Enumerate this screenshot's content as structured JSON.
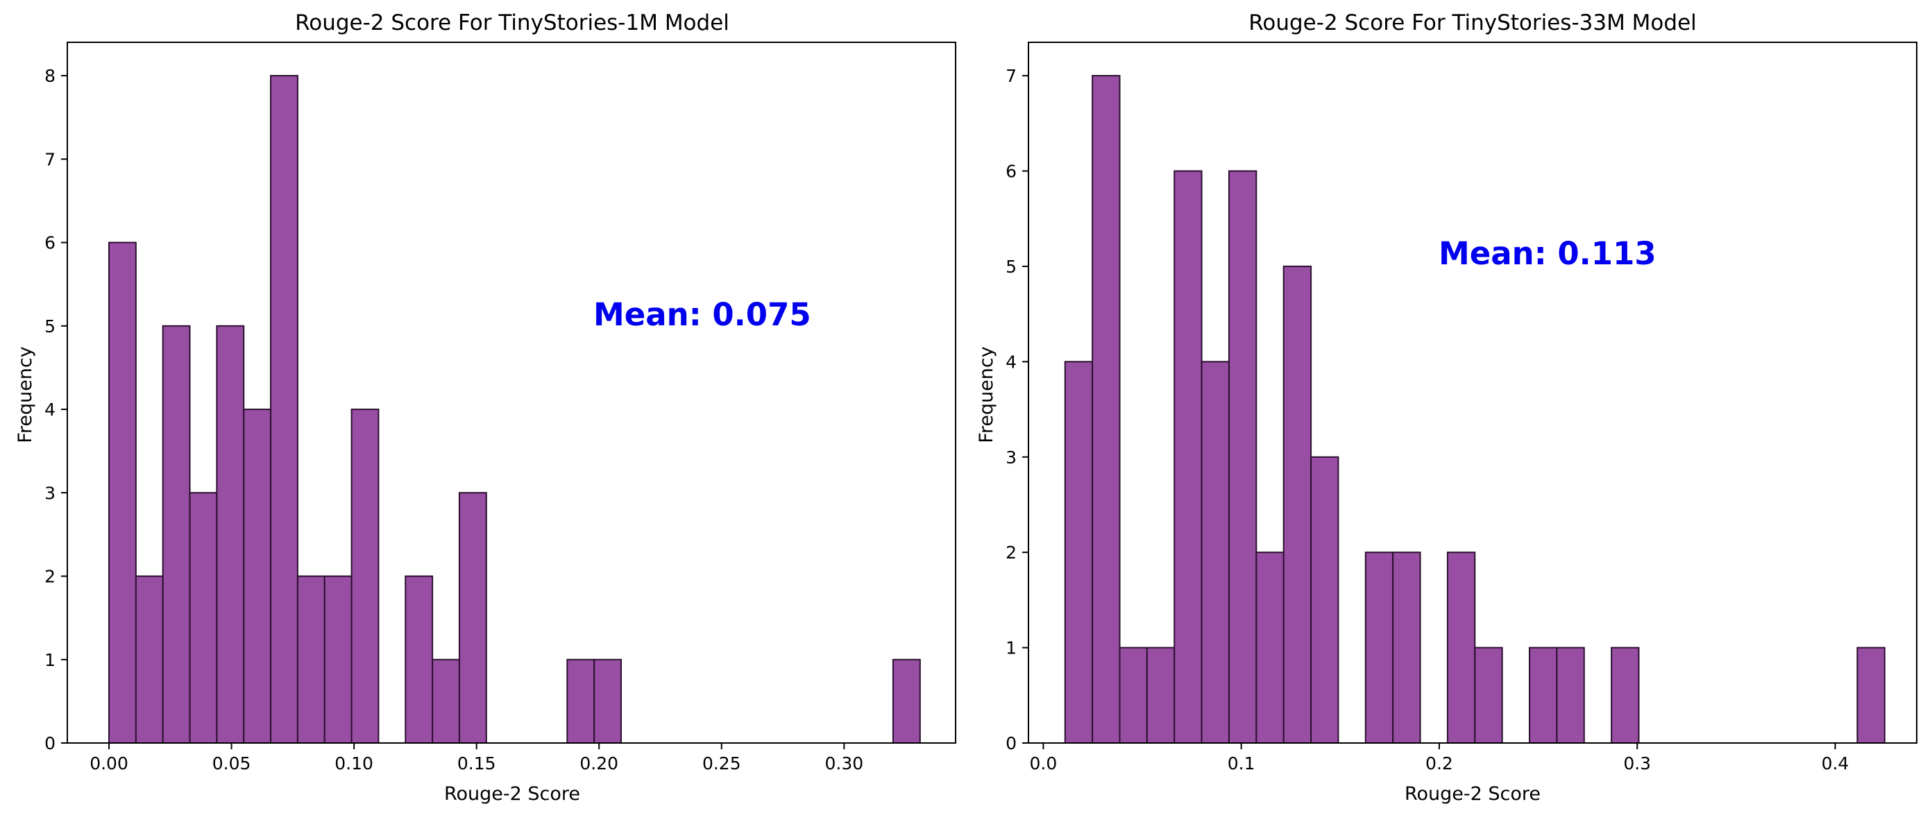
{
  "colors": {
    "bar_fill": "#984ea3",
    "bar_edge": "#2a0f2e",
    "mean_text": "#0000ee"
  },
  "chart_data": [
    {
      "type": "bar",
      "title": "Rouge-2 Score For TinyStories-1M Model",
      "xlabel": "Rouge-2 Score",
      "ylabel": "Frequency",
      "annotation": "Mean: 0.075",
      "xlim": [
        -0.017,
        0.3455
      ],
      "ylim": [
        0,
        8.4
      ],
      "xticks": [
        "0.00",
        "0.05",
        "0.10",
        "0.15",
        "0.20",
        "0.25",
        "0.30"
      ],
      "xtick_values": [
        0.0,
        0.05,
        0.1,
        0.15,
        0.2,
        0.25,
        0.3
      ],
      "yticks": [
        "0",
        "1",
        "2",
        "3",
        "4",
        "5",
        "6",
        "7",
        "8"
      ],
      "ytick_values": [
        0,
        1,
        2,
        3,
        4,
        5,
        6,
        7,
        8
      ],
      "bin_width": 0.011,
      "bins": [
        {
          "x": 0.0,
          "count": 6
        },
        {
          "x": 0.011,
          "count": 2
        },
        {
          "x": 0.022,
          "count": 5
        },
        {
          "x": 0.033,
          "count": 3
        },
        {
          "x": 0.044,
          "count": 5
        },
        {
          "x": 0.055,
          "count": 4
        },
        {
          "x": 0.066,
          "count": 8
        },
        {
          "x": 0.077,
          "count": 2
        },
        {
          "x": 0.088,
          "count": 2
        },
        {
          "x": 0.099,
          "count": 4
        },
        {
          "x": 0.121,
          "count": 2
        },
        {
          "x": 0.132,
          "count": 1
        },
        {
          "x": 0.143,
          "count": 3
        },
        {
          "x": 0.187,
          "count": 1
        },
        {
          "x": 0.198,
          "count": 1
        },
        {
          "x": 0.32,
          "count": 1
        }
      ]
    },
    {
      "type": "bar",
      "title": "Rouge-2 Score For TinyStories-33M Model",
      "xlabel": "Rouge-2 Score",
      "ylabel": "Frequency",
      "annotation": "Mean: 0.113",
      "xlim": [
        -0.0075,
        0.4412
      ],
      "ylim": [
        0,
        7.35
      ],
      "xticks": [
        "0.0",
        "0.1",
        "0.2",
        "0.3",
        "0.4"
      ],
      "xtick_values": [
        0.0,
        0.1,
        0.2,
        0.3,
        0.4
      ],
      "yticks": [
        "0",
        "1",
        "2",
        "3",
        "4",
        "5",
        "6",
        "7"
      ],
      "ytick_values": [
        0,
        1,
        2,
        3,
        4,
        5,
        6,
        7
      ],
      "bin_width": 0.0138,
      "bins": [
        {
          "x": 0.011,
          "count": 4
        },
        {
          "x": 0.0248,
          "count": 7
        },
        {
          "x": 0.0386,
          "count": 1
        },
        {
          "x": 0.0524,
          "count": 1
        },
        {
          "x": 0.0662,
          "count": 6
        },
        {
          "x": 0.08,
          "count": 4
        },
        {
          "x": 0.0938,
          "count": 6
        },
        {
          "x": 0.1076,
          "count": 2
        },
        {
          "x": 0.1214,
          "count": 5
        },
        {
          "x": 0.1352,
          "count": 3
        },
        {
          "x": 0.1628,
          "count": 2
        },
        {
          "x": 0.1766,
          "count": 2
        },
        {
          "x": 0.2042,
          "count": 2
        },
        {
          "x": 0.218,
          "count": 1
        },
        {
          "x": 0.2456,
          "count": 1
        },
        {
          "x": 0.2594,
          "count": 1
        },
        {
          "x": 0.287,
          "count": 1
        },
        {
          "x": 0.4112,
          "count": 1
        }
      ]
    }
  ]
}
